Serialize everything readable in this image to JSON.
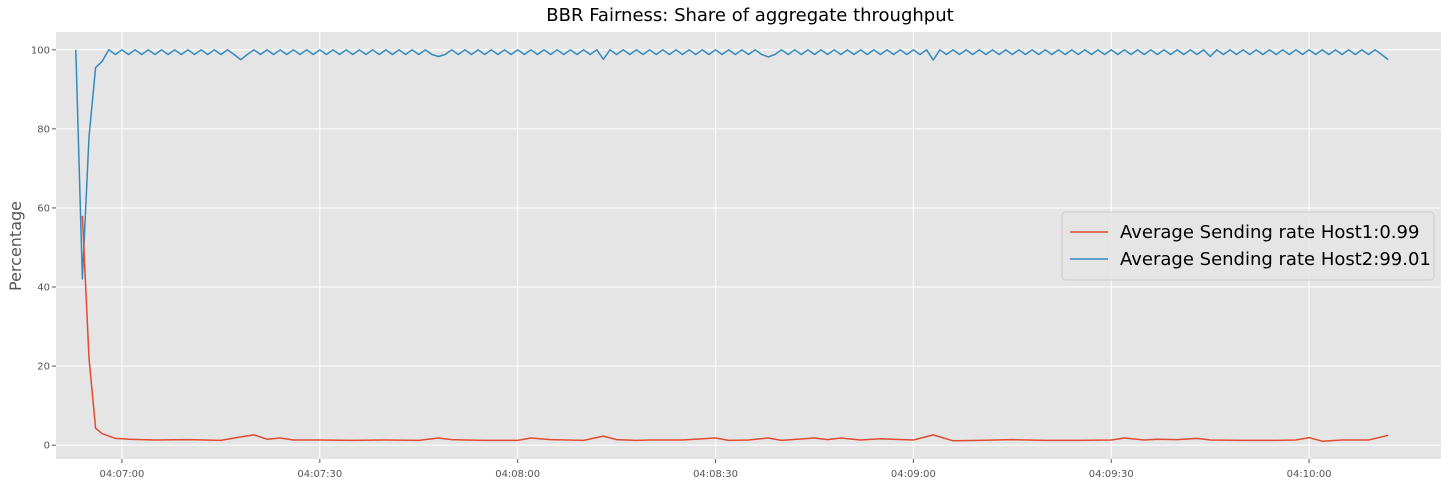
{
  "chart_data": {
    "type": "line",
    "title": "BBR Fairness: Share of aggregate throughput",
    "xlabel": "",
    "ylabel": "Percentage",
    "xlim": [
      "04:06:50",
      "04:10:20"
    ],
    "ylim": [
      -3.5,
      104.5
    ],
    "x_ticks": [
      "04:07:00",
      "04:07:30",
      "04:08:00",
      "04:08:30",
      "04:09:00",
      "04:09:30",
      "04:10:00"
    ],
    "y_ticks": [
      0,
      20,
      40,
      60,
      80,
      100
    ],
    "grid": true,
    "legend_position": "center-right",
    "colors": {
      "background": "#e5e5e5",
      "grid": "#ffffff",
      "host1": "#e24a33",
      "host2": "#348abd"
    },
    "series": [
      {
        "name": "Average Sending rate Host1:0.99",
        "color": "#e24a33",
        "x": [
          "04:06:54",
          "04:06:55",
          "04:06:56",
          "04:06:57",
          "04:06:58",
          "04:06:59",
          "04:07:01",
          "04:07:05",
          "04:07:10",
          "04:07:15",
          "04:07:18",
          "04:07:20",
          "04:07:22",
          "04:07:24",
          "04:07:26",
          "04:07:30",
          "04:07:35",
          "04:07:40",
          "04:07:45",
          "04:07:48",
          "04:07:50",
          "04:07:52",
          "04:07:55",
          "04:08:00",
          "04:08:02",
          "04:08:05",
          "04:08:10",
          "04:08:13",
          "04:08:15",
          "04:08:18",
          "04:08:20",
          "04:08:25",
          "04:08:30",
          "04:08:32",
          "04:08:35",
          "04:08:38",
          "04:08:40",
          "04:08:45",
          "04:08:47",
          "04:08:49",
          "04:08:52",
          "04:08:55",
          "04:09:00",
          "04:09:03",
          "04:09:06",
          "04:09:10",
          "04:09:15",
          "04:09:20",
          "04:09:25",
          "04:09:30",
          "04:09:32",
          "04:09:35",
          "04:09:37",
          "04:09:40",
          "04:09:43",
          "04:09:45",
          "04:09:50",
          "04:09:55",
          "04:09:58",
          "04:10:00",
          "04:10:02",
          "04:10:05",
          "04:10:09",
          "04:10:12"
        ],
        "values": [
          58,
          22,
          4.3,
          2.9,
          2.3,
          1.7,
          1.5,
          1.3,
          1.4,
          1.2,
          2.1,
          2.6,
          1.5,
          1.8,
          1.3,
          1.3,
          1.2,
          1.3,
          1.2,
          1.8,
          1.4,
          1.3,
          1.2,
          1.2,
          1.8,
          1.4,
          1.2,
          2.3,
          1.4,
          1.2,
          1.3,
          1.3,
          1.8,
          1.2,
          1.3,
          1.8,
          1.2,
          1.8,
          1.4,
          1.8,
          1.3,
          1.6,
          1.3,
          2.6,
          1.1,
          1.2,
          1.4,
          1.2,
          1.2,
          1.3,
          1.8,
          1.3,
          1.5,
          1.4,
          1.7,
          1.3,
          1.2,
          1.2,
          1.3,
          1.9,
          1.0,
          1.3,
          1.3,
          2.5
        ]
      },
      {
        "name": "Average Sending rate Host2:99.01",
        "color": "#348abd",
        "x": [
          "04:06:53",
          "04:06:54",
          "04:06:55",
          "04:06:56",
          "04:06:57",
          "04:06:58"
        ],
        "values": [
          100,
          42,
          78,
          95.5,
          97.1,
          100
        ],
        "oscillation": {
          "start": "04:06:58",
          "end": "04:10:12",
          "step_seconds": 1,
          "pattern": [
            100,
            98.8
          ],
          "dips": [
            {
              "x": "04:07:18",
              "value": 97.5
            },
            {
              "x": "04:07:48",
              "value": 98.3
            },
            {
              "x": "04:08:13",
              "value": 97.6
            },
            {
              "x": "04:08:38",
              "value": 98.2
            },
            {
              "x": "04:09:03",
              "value": 97.4
            },
            {
              "x": "04:09:45",
              "value": 98.3
            },
            {
              "x": "04:10:12",
              "value": 97.5
            }
          ]
        }
      }
    ]
  }
}
